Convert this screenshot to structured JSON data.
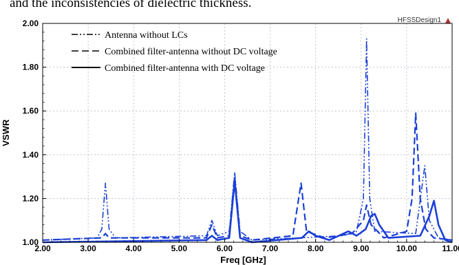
{
  "caption_text": "and the inconsistencies of dielectric thickness.",
  "design_name": "HFSSDesign1",
  "icon": "hfss-logo-icon",
  "colors": {
    "series": "#1a3fd6",
    "axis": "#000000",
    "grid": "#9aa0b4"
  },
  "chart_data": {
    "type": "line",
    "title": "",
    "xlabel": "Freq [GHz]",
    "ylabel": "VSWR",
    "xlim": [
      2.0,
      11.0
    ],
    "ylim": [
      1.0,
      2.0
    ],
    "x_ticks": [
      "2.00",
      "3.00",
      "4.00",
      "5.00",
      "6.00",
      "7.00",
      "8.00",
      "9.00",
      "10.00",
      "11.00"
    ],
    "y_ticks": [
      "1.00",
      "1.20",
      "1.40",
      "1.60",
      "1.80",
      "2.00"
    ],
    "grid": true,
    "legend_position": "top-left",
    "series": [
      {
        "name": "Antenna without LCs",
        "style": "dash-dot-dot",
        "points": [
          [
            2.0,
            1.01
          ],
          [
            3.2,
            1.02
          ],
          [
            3.3,
            1.06
          ],
          [
            3.38,
            1.27
          ],
          [
            3.46,
            1.06
          ],
          [
            3.6,
            1.02
          ],
          [
            5.6,
            1.03
          ],
          [
            5.72,
            1.1
          ],
          [
            5.84,
            1.03
          ],
          [
            6.1,
            1.05
          ],
          [
            6.22,
            1.32
          ],
          [
            6.34,
            1.05
          ],
          [
            6.6,
            1.01
          ],
          [
            8.6,
            1.03
          ],
          [
            8.9,
            1.05
          ],
          [
            9.05,
            1.2
          ],
          [
            9.12,
            1.93
          ],
          [
            9.19,
            1.2
          ],
          [
            9.3,
            1.05
          ],
          [
            10.2,
            1.04
          ],
          [
            10.4,
            1.35
          ],
          [
            10.5,
            1.1
          ],
          [
            10.7,
            1.02
          ],
          [
            11.0,
            1.01
          ]
        ]
      },
      {
        "name": "Combined filter-antenna without DC voltage",
        "style": "dashed",
        "points": [
          [
            2.0,
            1.01
          ],
          [
            3.3,
            1.02
          ],
          [
            3.38,
            1.04
          ],
          [
            3.46,
            1.02
          ],
          [
            5.6,
            1.02
          ],
          [
            5.72,
            1.08
          ],
          [
            5.84,
            1.02
          ],
          [
            6.1,
            1.03
          ],
          [
            6.22,
            1.3
          ],
          [
            6.34,
            1.03
          ],
          [
            6.6,
            1.01
          ],
          [
            7.5,
            1.03
          ],
          [
            7.68,
            1.27
          ],
          [
            7.8,
            1.05
          ],
          [
            8.2,
            1.02
          ],
          [
            8.8,
            1.04
          ],
          [
            9.05,
            1.1
          ],
          [
            9.12,
            1.17
          ],
          [
            9.22,
            1.08
          ],
          [
            9.5,
            1.02
          ],
          [
            10.0,
            1.05
          ],
          [
            10.12,
            1.2
          ],
          [
            10.2,
            1.59
          ],
          [
            10.3,
            1.2
          ],
          [
            10.42,
            1.06
          ],
          [
            10.6,
            1.02
          ],
          [
            11.0,
            1.01
          ]
        ]
      },
      {
        "name": "Combined filter-antenna with DC voltage",
        "style": "solid",
        "points": [
          [
            2.0,
            1.0
          ],
          [
            5.6,
            1.01
          ],
          [
            5.72,
            1.03
          ],
          [
            5.84,
            1.01
          ],
          [
            6.1,
            1.02
          ],
          [
            6.22,
            1.28
          ],
          [
            6.34,
            1.02
          ],
          [
            6.6,
            1.0
          ],
          [
            7.7,
            1.02
          ],
          [
            7.85,
            1.05
          ],
          [
            8.0,
            1.03
          ],
          [
            8.3,
            1.01
          ],
          [
            8.72,
            1.05
          ],
          [
            8.9,
            1.03
          ],
          [
            9.1,
            1.06
          ],
          [
            9.22,
            1.12
          ],
          [
            9.3,
            1.13
          ],
          [
            9.4,
            1.08
          ],
          [
            9.6,
            1.02
          ],
          [
            10.3,
            1.03
          ],
          [
            10.5,
            1.12
          ],
          [
            10.6,
            1.19
          ],
          [
            10.7,
            1.08
          ],
          [
            10.85,
            1.01
          ],
          [
            11.0,
            1.0
          ]
        ]
      }
    ]
  }
}
